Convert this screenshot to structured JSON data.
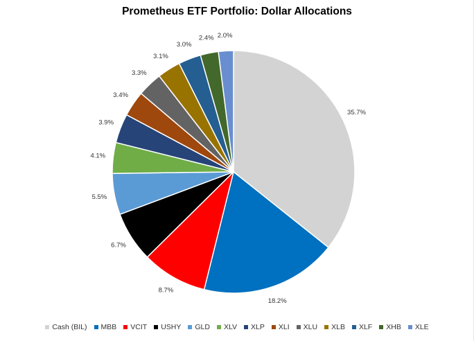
{
  "chart_data": {
    "type": "pie",
    "title": "Prometheus ETF Portfolio: Dollar Allocations",
    "legend_position": "bottom",
    "slices": [
      {
        "name": "Cash (BIL)",
        "value": 35.7,
        "label": "35.7%",
        "color": "#D3D3D3"
      },
      {
        "name": "MBB",
        "value": 18.2,
        "label": "18.2%",
        "color": "#0070C0"
      },
      {
        "name": "VCIT",
        "value": 8.7,
        "label": "8.7%",
        "color": "#FF0000"
      },
      {
        "name": "USHY",
        "value": 6.7,
        "label": "6.7%",
        "color": "#000000"
      },
      {
        "name": "GLD",
        "value": 5.5,
        "label": "5.5%",
        "color": "#5B9BD5"
      },
      {
        "name": "XLV",
        "value": 4.1,
        "label": "4.1%",
        "color": "#70AD47"
      },
      {
        "name": "XLP",
        "value": 3.9,
        "label": "3.9%",
        "color": "#264478"
      },
      {
        "name": "XLI",
        "value": 3.4,
        "label": "3.4%",
        "color": "#9E480E"
      },
      {
        "name": "XLU",
        "value": 3.3,
        "label": "3.3%",
        "color": "#636363"
      },
      {
        "name": "XLB",
        "value": 3.1,
        "label": "3.1%",
        "color": "#997300"
      },
      {
        "name": "XLF",
        "value": 3.0,
        "label": "3.0%",
        "color": "#255E91"
      },
      {
        "name": "XHB",
        "value": 2.4,
        "label": "2.4%",
        "color": "#43682B"
      },
      {
        "name": "XLE",
        "value": 2.0,
        "label": "2.0%",
        "color": "#698ED0"
      }
    ]
  }
}
